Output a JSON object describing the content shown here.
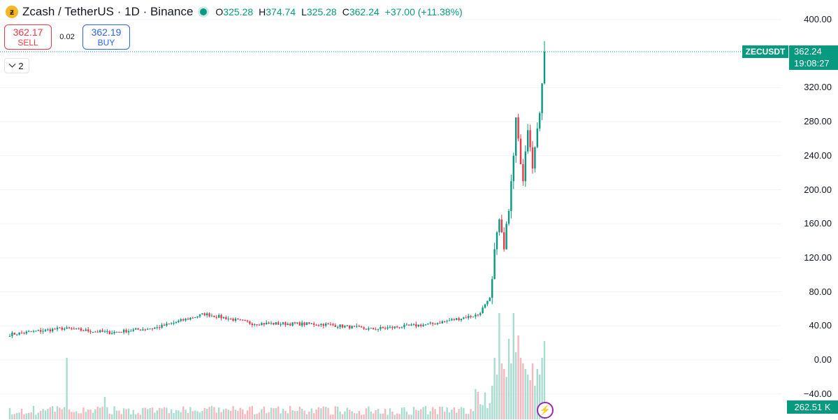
{
  "header": {
    "icon": "zcash-coin-icon",
    "icon_glyph": "ƶ",
    "title": "Zcash / TetherUS · 1D · Binance",
    "open_label": "O",
    "open_value": "325.28",
    "high_label": "H",
    "high_value": "374.74",
    "low_label": "L",
    "low_value": "325.28",
    "close_label": "C",
    "close_value": "362.24",
    "change": "+37.00 (+11.38%)"
  },
  "trade": {
    "sell_price": "362.17",
    "sell_label": "SELL",
    "spread": "0.02",
    "buy_price": "362.19",
    "buy_label": "BUY"
  },
  "indicators_toggle": {
    "count": "2"
  },
  "price_axis": {
    "labels": [
      "400.00",
      "320.00",
      "280.00",
      "240.00",
      "200.00",
      "160.00",
      "120.00",
      "80.00",
      "40.00",
      "0.00",
      "−40.00"
    ]
  },
  "last_price": {
    "symbol": "ZECUSDT",
    "price": "362.24",
    "countdown": "19:08:27"
  },
  "volume": {
    "last_label": "262.51 K"
  },
  "colors": {
    "up": "#089981",
    "down": "#f23645",
    "vol_up": "#a8dcd1",
    "vol_down": "#f7b7bd",
    "grid": "#f0f3fa",
    "accent": "#9c27b0"
  },
  "chart_data": {
    "type": "candlestick",
    "title": "Zcash / TetherUS · 1D · Binance",
    "ylim": [
      -40,
      410
    ],
    "grid": true,
    "price_ticks": [
      400,
      320,
      280,
      240,
      200,
      160,
      120,
      80,
      40,
      0,
      -40
    ],
    "last_price": 362.24,
    "phases": [
      {
        "bars": 22,
        "from": 30,
        "to": 37
      },
      {
        "bars": 20,
        "from": 37,
        "to": 32
      },
      {
        "bars": 20,
        "from": 32,
        "to": 38
      },
      {
        "bars": 20,
        "from": 38,
        "to": 54
      },
      {
        "bars": 20,
        "from": 54,
        "to": 43
      },
      {
        "bars": 30,
        "from": 43,
        "to": 42
      },
      {
        "bars": 20,
        "from": 42,
        "to": 36
      },
      {
        "bars": 25,
        "from": 36,
        "to": 42
      },
      {
        "bars": 20,
        "from": 42,
        "to": 53
      },
      {
        "bars": 6,
        "from": 53,
        "to": 75
      }
    ],
    "recent_closes": [
      95,
      130,
      150,
      165,
      150,
      130,
      160,
      175,
      210,
      240,
      285,
      260,
      230,
      210,
      245,
      270,
      250,
      225,
      250,
      272,
      290,
      325,
      362.24
    ],
    "volume_spikes": [
      {
        "bar": 24,
        "value": 0.55
      },
      {
        "bar": 40,
        "value": 0.2
      }
    ],
    "volume_recent": [
      0.3,
      0.55,
      0.4,
      0.95,
      0.5,
      0.45,
      0.38,
      0.72,
      0.5,
      0.95,
      0.6,
      0.75,
      0.55,
      0.5,
      0.45,
      0.4,
      0.35,
      0.5,
      0.3,
      0.45,
      0.4,
      0.55,
      0.7
    ]
  }
}
